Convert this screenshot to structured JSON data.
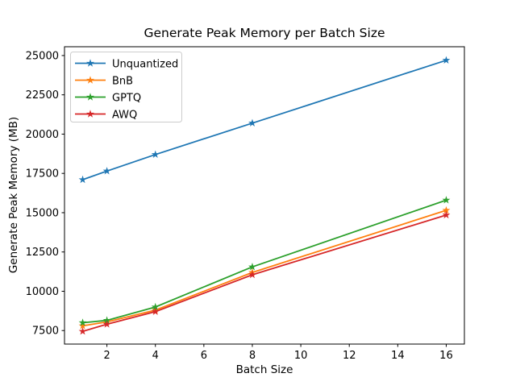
{
  "chart_data": {
    "type": "line",
    "title": "Generate Peak Memory per Batch Size",
    "xlabel": "Batch Size",
    "ylabel": "Generate Peak Memory (MB)",
    "x": [
      1,
      2,
      4,
      8,
      16
    ],
    "series": [
      {
        "name": "Unquantized",
        "color": "#1f77b4",
        "values": [
          17100,
          17650,
          18700,
          20700,
          24700
        ]
      },
      {
        "name": "BnB",
        "color": "#ff7f0e",
        "values": [
          7800,
          8050,
          8800,
          11200,
          15150
        ]
      },
      {
        "name": "GPTQ",
        "color": "#2ca02c",
        "values": [
          8000,
          8150,
          9000,
          11550,
          15800
        ]
      },
      {
        "name": "AWQ",
        "color": "#d62728",
        "values": [
          7450,
          7900,
          8700,
          11050,
          14850
        ]
      }
    ],
    "x_ticks": [
      2,
      4,
      6,
      8,
      10,
      12,
      14,
      16
    ],
    "y_ticks": [
      7500,
      10000,
      12500,
      15000,
      17500,
      20000,
      22500,
      25000
    ],
    "xlim": [
      0.25,
      16.75
    ],
    "ylim": [
      6640,
      25560
    ],
    "marker": "star",
    "grid": false,
    "legend_position": "upper left",
    "axis_color": "#000000",
    "legend_border_color": "#cccccc",
    "background_color": "#ffffff"
  }
}
